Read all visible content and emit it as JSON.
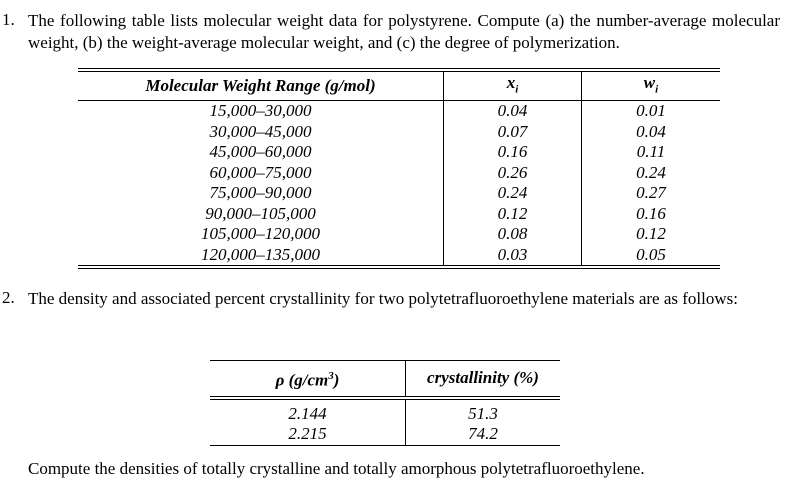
{
  "problems": [
    {
      "number": "1.",
      "text": "The following table lists molecular weight data for polystyrene. Compute (a) the number-average molecular weight, (b) the weight-average molecular weight, and (c) the degree of polymerization."
    },
    {
      "number": "2.",
      "text": "The density and associated percent crystallinity for two polytetrafluoroethylene materials are as follows:"
    }
  ],
  "table1": {
    "headers": [
      {
        "main": "Molecular Weight Range (g/mol)"
      },
      {
        "main": "x",
        "sub": "i"
      },
      {
        "main": "w",
        "sub": "i"
      }
    ],
    "rows": [
      [
        "15,000–30,000",
        "0.04",
        "0.01"
      ],
      [
        "30,000–45,000",
        "0.07",
        "0.04"
      ],
      [
        "45,000–60,000",
        "0.16",
        "0.11"
      ],
      [
        "60,000–75,000",
        "0.26",
        "0.24"
      ],
      [
        "75,000–90,000",
        "0.24",
        "0.27"
      ],
      [
        "90,000–105,000",
        "0.12",
        "0.16"
      ],
      [
        "105,000–120,000",
        "0.08",
        "0.12"
      ],
      [
        "120,000–135,000",
        "0.03",
        "0.05"
      ]
    ]
  },
  "table2": {
    "headers": [
      {
        "main": "ρ (g/cm",
        "sup": "3",
        "after": ")"
      },
      {
        "main": "crystallinity (%)"
      }
    ],
    "rows": [
      [
        "2.144",
        "51.3"
      ],
      [
        "2.215",
        "74.2"
      ]
    ]
  },
  "closing": "Compute the densities of totally crystalline and totally amorphous polytetrafluoroethylene."
}
